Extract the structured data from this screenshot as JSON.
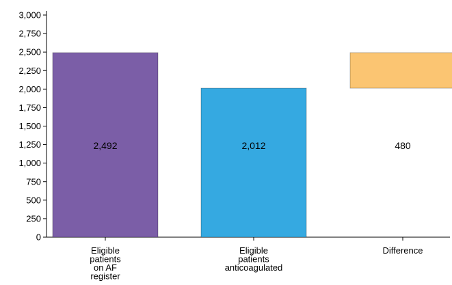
{
  "chart_data": {
    "type": "bar",
    "subtype": "waterfall",
    "categories": [
      [
        "Eligible",
        "patients",
        "on AF",
        "register"
      ],
      [
        "Eligible",
        "patients",
        "anticoagulated"
      ],
      [
        "Difference"
      ]
    ],
    "bars": [
      {
        "base": 0,
        "top": 2492,
        "label": "2,492",
        "color": "#7b5ea7"
      },
      {
        "base": 0,
        "top": 2012,
        "label": "2,012",
        "color": "#35a9e1"
      },
      {
        "base": 2012,
        "top": 2492,
        "label": "480",
        "color": "#fbc572"
      }
    ],
    "yticks": [
      {
        "value": 0,
        "label": "0"
      },
      {
        "value": 250,
        "label": "250"
      },
      {
        "value": 500,
        "label": "500"
      },
      {
        "value": 750,
        "label": "750"
      },
      {
        "value": 1000,
        "label": "1,000"
      },
      {
        "value": 1250,
        "label": "1,250"
      },
      {
        "value": 1500,
        "label": "1,500"
      },
      {
        "value": 1750,
        "label": "1,750"
      },
      {
        "value": 2000,
        "label": "2,000"
      },
      {
        "value": 2250,
        "label": "2,250"
      },
      {
        "value": 2500,
        "label": "2,500"
      },
      {
        "value": 2750,
        "label": "2,750"
      },
      {
        "value": 3000,
        "label": "3,000"
      }
    ],
    "ylim": [
      0,
      3000
    ],
    "title": "",
    "xlabel": "",
    "ylabel": "",
    "grid": false,
    "legend": "none"
  }
}
